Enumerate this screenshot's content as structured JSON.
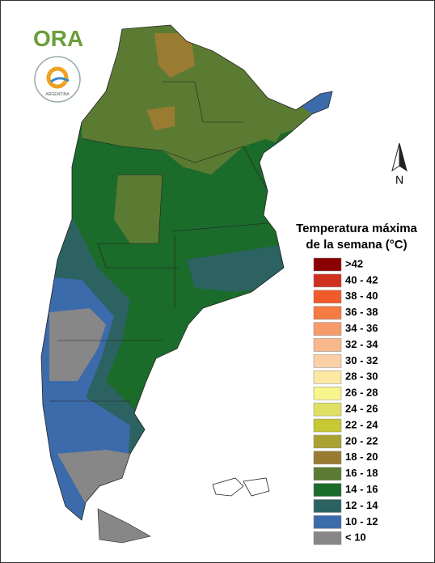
{
  "logo": {
    "name": "ORA",
    "subtitle": "ARGENTINA"
  },
  "north": "N",
  "legend": {
    "title": [
      "Temperatura máxima",
      "de la semana (°C)"
    ],
    "items": [
      {
        "label": ">42",
        "color": "#8b0000"
      },
      {
        "label": "40 - 42",
        "color": "#d0301e"
      },
      {
        "label": "38 - 40",
        "color": "#f15a29"
      },
      {
        "label": "36 - 38",
        "color": "#f47b42"
      },
      {
        "label": "34 - 36",
        "color": "#f79b6a"
      },
      {
        "label": "32 - 34",
        "color": "#f9b88c"
      },
      {
        "label": "30 - 32",
        "color": "#fbd0a6"
      },
      {
        "label": "28 - 30",
        "color": "#fde8a4"
      },
      {
        "label": "26 - 28",
        "color": "#f7f58c"
      },
      {
        "label": "24 - 26",
        "color": "#dfe063"
      },
      {
        "label": "22 - 24",
        "color": "#c7c832"
      },
      {
        "label": "20 - 22",
        "color": "#aaa132"
      },
      {
        "label": "18 - 20",
        "color": "#9a7b32"
      },
      {
        "label": "16 - 18",
        "color": "#5b7b32"
      },
      {
        "label": "14 - 16",
        "color": "#1b6b2b"
      },
      {
        "label": "12 - 14",
        "color": "#2c6262"
      },
      {
        "label": "10 - 12",
        "color": "#3c6bab"
      },
      {
        "label": "< 10",
        "color": "#878787"
      }
    ]
  }
}
